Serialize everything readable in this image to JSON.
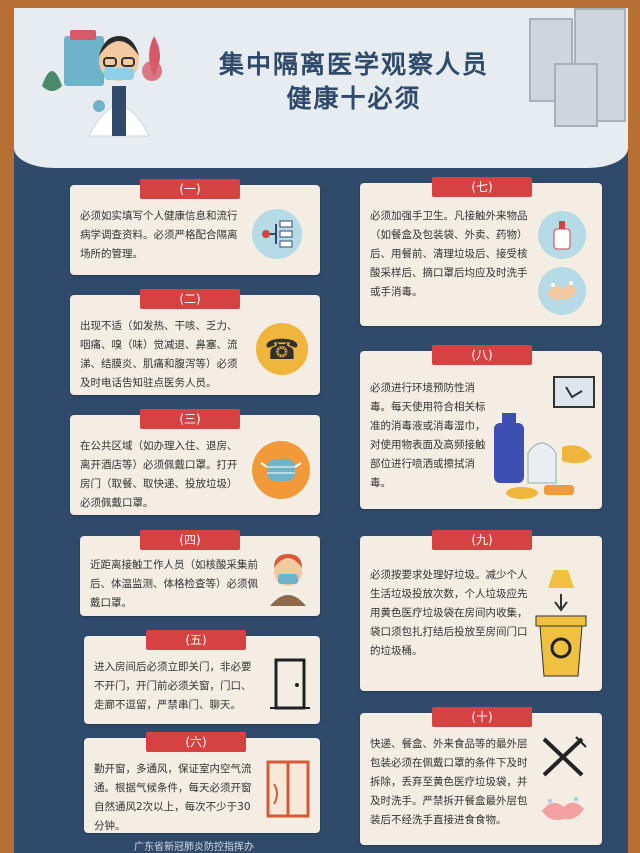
{
  "poster": {
    "title_line1": "集中隔离医学观察人员",
    "title_line2": "健康十必须"
  },
  "items": [
    {
      "num": "(一)",
      "text": "必须如实填写个人健康信息和流行病学调查资料。必须严格配合隔离场所的管理。",
      "icon": "flow-icon"
    },
    {
      "num": "(二)",
      "text": "出现不适（如发热、干咳、乏力、咽痛、嗅（味）觉减退、鼻塞、流涕、结膜炎、肌痛和腹泻等）必须及时电话告知驻点医务人员。",
      "icon": "phone-icon"
    },
    {
      "num": "(三)",
      "text": "在公共区域（如办理入住、退房、离开酒店等）必须佩戴口罩。打开房门（取餐、取快递、投放垃圾）必须佩戴口罩。",
      "icon": "mask-icon"
    },
    {
      "num": "(四)",
      "text": "近距离接触工作人员（如核酸采集前后、体温监测、体格检查等）必须佩戴口罩。",
      "icon": "person-mask-icon"
    },
    {
      "num": "(五)",
      "text": "进入房间后必须立即关门，非必要不开门，开门前必须关窗，门口、走廊不逗留，严禁串门、聊天。",
      "icon": "door-icon"
    },
    {
      "num": "(六)",
      "text": "勤开窗，多通风，保证室内空气流通。根据气候条件，每天必须开窗自然通风2次以上，每次不少于30分钟。",
      "icon": "window-icon"
    },
    {
      "num": "(七)",
      "text": "必须加强手卫生。凡接触外来物品（如餐盒及包装袋、外卖、药物）后、用餐前、清理垃圾后、接受核酸采样后、摘口罩后均应及时洗手或手消毒。",
      "icon": "handwash-icon"
    },
    {
      "num": "(八)",
      "text": "必须进行环境预防性消毒。每天使用符合相关标准的消毒液或消毒湿巾，对使用物表面及高频接触部位进行喷洒或擦拭消毒。",
      "icon": "disinfect-icon"
    },
    {
      "num": "(九)",
      "text": "必须按要求处理好垃圾。减少个人生活垃圾投放次数，个人垃圾应先用黄色医疗垃圾袋在房间内收集，袋口须包扎打结后投放至房间门口的垃圾桶。",
      "icon": "biohazard-bin-icon"
    },
    {
      "num": "(十)",
      "text": "快递、餐盒、外来食品等的最外层包装必须在佩戴口罩的条件下及时拆除，丢弃至黄色医疗垃圾袋，并及时洗手。严禁拆开餐盒最外层包装后不经洗手直接进食食物。",
      "icon": "cutlery-icon"
    }
  ],
  "footer": {
    "text": "广东省新冠肺炎防控指挥办"
  }
}
